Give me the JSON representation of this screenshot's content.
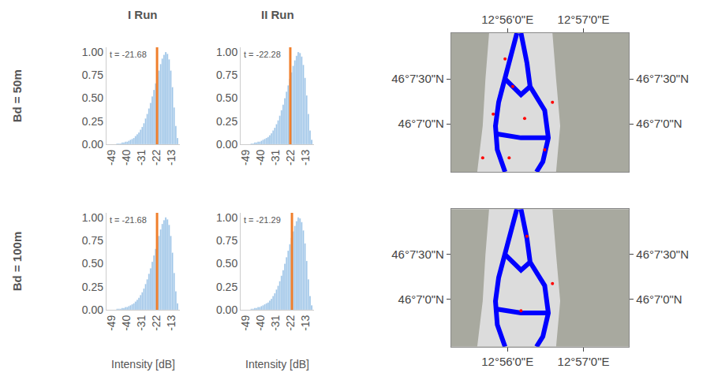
{
  "figure": {
    "column_titles": [
      "I Run",
      "II Run"
    ],
    "row_titles": [
      "Bd = 50m",
      "Bd = 100m"
    ]
  },
  "chart_data": [
    {
      "type": "histogram",
      "color": "#9ec5e8",
      "bins": [
        -49,
        -48,
        -47,
        -46,
        -45,
        -44,
        -43,
        -42,
        -41,
        -40,
        -39,
        -38,
        -37,
        -36,
        -35,
        -34,
        -33,
        -32,
        -31,
        -30,
        -29,
        -28,
        -27,
        -26,
        -25,
        -24,
        -23,
        -22,
        -21,
        -20,
        -19,
        -18,
        -17,
        -16,
        -15,
        -14,
        -13,
        -12,
        -11,
        -10,
        -9
      ],
      "counts": [
        0,
        0,
        0,
        0.01,
        0.01,
        0.01,
        0.02,
        0.02,
        0.03,
        0.03,
        0.04,
        0.05,
        0.06,
        0.07,
        0.09,
        0.11,
        0.13,
        0.16,
        0.19,
        0.23,
        0.28,
        0.33,
        0.39,
        0.45,
        0.52,
        0.59,
        0.66,
        0.73,
        0.8,
        0.87,
        0.93,
        0.97,
        1.0,
        0.98,
        0.92,
        0.8,
        0.62,
        0.4,
        0.2,
        0.07
      ],
      "threshold": {
        "value": -21.68,
        "label": "t = -21.68",
        "color": "#f07f2c"
      },
      "xlim": [
        -52,
        -8
      ],
      "xticks": [
        -49,
        -40,
        -31,
        -22,
        -13
      ],
      "ylim": [
        0,
        1.05
      ],
      "yticks": [
        {
          "value": 0,
          "label": "0.00"
        },
        {
          "value": 0.25,
          "label": "0.25"
        },
        {
          "value": 0.5,
          "label": "0.50"
        },
        {
          "value": 0.75,
          "label": "0.75"
        },
        {
          "value": 1,
          "label": "1.00"
        }
      ]
    },
    {
      "type": "histogram",
      "color": "#9ec5e8",
      "bins": [
        -49,
        -48,
        -47,
        -46,
        -45,
        -44,
        -43,
        -42,
        -41,
        -40,
        -39,
        -38,
        -37,
        -36,
        -35,
        -34,
        -33,
        -32,
        -31,
        -30,
        -29,
        -28,
        -27,
        -26,
        -25,
        -24,
        -23,
        -22,
        -21,
        -20,
        -19,
        -18,
        -17,
        -16,
        -15,
        -14,
        -13,
        -12,
        -11,
        -10,
        -9
      ],
      "counts": [
        0,
        0,
        0,
        0.01,
        0.01,
        0.02,
        0.02,
        0.03,
        0.03,
        0.04,
        0.05,
        0.06,
        0.07,
        0.08,
        0.1,
        0.12,
        0.15,
        0.18,
        0.22,
        0.26,
        0.31,
        0.37,
        0.43,
        0.5,
        0.57,
        0.64,
        0.71,
        0.78,
        0.85,
        0.91,
        0.96,
        1.0,
        0.99,
        0.95,
        0.86,
        0.72,
        0.53,
        0.33,
        0.15,
        0.05
      ],
      "threshold": {
        "value": -22.28,
        "label": "t = -22.28",
        "color": "#f07f2c"
      },
      "xlim": [
        -52,
        -8
      ],
      "xticks": [
        -49,
        -40,
        -31,
        -22,
        -13
      ],
      "ylim": [
        0,
        1.05
      ],
      "yticks": [
        {
          "value": 0,
          "label": "0.00"
        },
        {
          "value": 0.25,
          "label": "0.25"
        },
        {
          "value": 0.5,
          "label": "0.50"
        },
        {
          "value": 0.75,
          "label": "0.75"
        },
        {
          "value": 1,
          "label": "1.00"
        }
      ]
    },
    {
      "type": "histogram",
      "color": "#9ec5e8",
      "xlabel": "Intensity [dB]",
      "bins": [
        -49,
        -48,
        -47,
        -46,
        -45,
        -44,
        -43,
        -42,
        -41,
        -40,
        -39,
        -38,
        -37,
        -36,
        -35,
        -34,
        -33,
        -32,
        -31,
        -30,
        -29,
        -28,
        -27,
        -26,
        -25,
        -24,
        -23,
        -22,
        -21,
        -20,
        -19,
        -18,
        -17,
        -16,
        -15,
        -14,
        -13,
        -12,
        -11,
        -10,
        -9
      ],
      "counts": [
        0,
        0,
        0,
        0.01,
        0.01,
        0.01,
        0.02,
        0.02,
        0.03,
        0.03,
        0.04,
        0.05,
        0.06,
        0.07,
        0.09,
        0.11,
        0.13,
        0.16,
        0.19,
        0.23,
        0.28,
        0.33,
        0.39,
        0.45,
        0.52,
        0.59,
        0.66,
        0.73,
        0.8,
        0.87,
        0.93,
        0.97,
        1.0,
        0.98,
        0.92,
        0.8,
        0.62,
        0.4,
        0.2,
        0.07
      ],
      "threshold": {
        "value": -21.68,
        "label": "t = -21.68",
        "color": "#f07f2c"
      },
      "xlim": [
        -52,
        -8
      ],
      "xticks": [
        -49,
        -40,
        -31,
        -22,
        -13
      ],
      "ylim": [
        0,
        1.05
      ],
      "yticks": [
        {
          "value": 0,
          "label": "0.00"
        },
        {
          "value": 0.25,
          "label": "0.25"
        },
        {
          "value": 0.5,
          "label": "0.50"
        },
        {
          "value": 0.75,
          "label": "0.75"
        },
        {
          "value": 1,
          "label": "1.00"
        }
      ]
    },
    {
      "type": "histogram",
      "color": "#9ec5e8",
      "xlabel": "Intensity [dB]",
      "bins": [
        -49,
        -48,
        -47,
        -46,
        -45,
        -44,
        -43,
        -42,
        -41,
        -40,
        -39,
        -38,
        -37,
        -36,
        -35,
        -34,
        -33,
        -32,
        -31,
        -30,
        -29,
        -28,
        -27,
        -26,
        -25,
        -24,
        -23,
        -22,
        -21,
        -20,
        -19,
        -18,
        -17,
        -16,
        -15,
        -14,
        -13,
        -12,
        -11,
        -10,
        -9
      ],
      "counts": [
        0,
        0,
        0,
        0.01,
        0.01,
        0.02,
        0.02,
        0.03,
        0.03,
        0.04,
        0.05,
        0.06,
        0.07,
        0.08,
        0.1,
        0.12,
        0.15,
        0.18,
        0.22,
        0.26,
        0.31,
        0.37,
        0.43,
        0.5,
        0.57,
        0.64,
        0.71,
        0.78,
        0.85,
        0.91,
        0.96,
        1.0,
        0.99,
        0.95,
        0.86,
        0.72,
        0.53,
        0.33,
        0.15,
        0.05
      ],
      "threshold": {
        "value": -21.29,
        "label": "t = -21.29",
        "color": "#f07f2c"
      },
      "xlim": [
        -52,
        -8
      ],
      "xticks": [
        -49,
        -40,
        -31,
        -22,
        -13
      ],
      "ylim": [
        0,
        1.05
      ],
      "yticks": [
        {
          "value": 0,
          "label": "0.00"
        },
        {
          "value": 0.25,
          "label": "0.25"
        },
        {
          "value": 0.5,
          "label": "0.50"
        },
        {
          "value": 0.75,
          "label": "0.75"
        },
        {
          "value": 1,
          "label": "1.00"
        }
      ]
    },
    {
      "type": "map",
      "xlim": [
        12.921,
        12.96
      ],
      "ylim": [
        46.1078,
        46.1335
      ],
      "xticks": [
        {
          "value": 12.93333,
          "label": "12°56'0\"E"
        },
        {
          "value": 12.95,
          "label": "12°57'0\"E"
        }
      ],
      "yticks": [
        {
          "value": 46.11667,
          "label": "46°7'0\"N"
        },
        {
          "value": 46.125,
          "label": "46°7'30\"N"
        }
      ],
      "series": [
        {
          "type": "area",
          "color": "#dcdcdc",
          "x": [
            12.9293,
            12.9432,
            12.944,
            12.9449,
            12.944,
            12.9267,
            12.9279,
            12.9285
          ],
          "y": [
            46.1335,
            46.1335,
            46.125,
            46.1163,
            46.1078,
            46.1078,
            46.1163,
            46.125
          ]
        },
        {
          "type": "line",
          "color": "#0000ff",
          "x": [
            12.9354,
            12.9342,
            12.9328,
            12.9314,
            12.9307,
            12.9311,
            12.9328
          ],
          "y": [
            46.1335,
            46.1294,
            46.125,
            46.1207,
            46.1163,
            46.1119,
            46.1078
          ]
        },
        {
          "type": "line",
          "color": "#0000ff",
          "x": [
            12.9363,
            12.9376,
            12.9383,
            12.9415,
            12.9423,
            12.9411,
            12.9397
          ],
          "y": [
            46.1335,
            46.128,
            46.1236,
            46.1192,
            46.1141,
            46.1097,
            46.1078
          ]
        },
        {
          "type": "line",
          "color": "#0000ff",
          "x": [
            12.9328,
            12.9363,
            12.9383
          ],
          "y": [
            46.125,
            46.1221,
            46.1236
          ]
        },
        {
          "type": "line",
          "color": "#0000ff",
          "x": [
            12.9311,
            12.9363,
            12.9423
          ],
          "y": [
            46.1148,
            46.1141,
            46.1141
          ]
        },
        {
          "type": "scatter",
          "color": "#ff0000",
          "x": [
            12.9345,
            12.9328,
            12.9371,
            12.9302,
            12.9415,
            12.9432,
            12.9279,
            12.9337
          ],
          "y": [
            46.1236,
            46.1287,
            46.1177,
            46.1185,
            46.1119,
            46.1207,
            46.1104,
            46.1104
          ]
        }
      ]
    },
    {
      "type": "map",
      "xlim": [
        12.921,
        12.96
      ],
      "ylim": [
        46.1078,
        46.1335
      ],
      "xticks": [
        {
          "value": 12.93333,
          "label": "12°56'0\"E"
        },
        {
          "value": 12.95,
          "label": "12°57'0\"E"
        }
      ],
      "yticks": [
        {
          "value": 46.11667,
          "label": "46°7'0\"N"
        },
        {
          "value": 46.125,
          "label": "46°7'30\"N"
        }
      ],
      "series": [
        {
          "type": "area",
          "color": "#dcdcdc",
          "x": [
            12.9293,
            12.9432,
            12.944,
            12.9449,
            12.944,
            12.9267,
            12.9279,
            12.9285
          ],
          "y": [
            46.1335,
            46.1335,
            46.125,
            46.1163,
            46.1078,
            46.1078,
            46.1163,
            46.125
          ]
        },
        {
          "type": "line",
          "color": "#0000ff",
          "x": [
            12.9354,
            12.9342,
            12.9328,
            12.9314,
            12.9307,
            12.9311,
            12.9328
          ],
          "y": [
            46.1335,
            46.1294,
            46.125,
            46.1207,
            46.1163,
            46.1119,
            46.1078
          ]
        },
        {
          "type": "line",
          "color": "#0000ff",
          "x": [
            12.9363,
            12.9376,
            12.9383,
            12.9415,
            12.9423,
            12.9411,
            12.9397
          ],
          "y": [
            46.1335,
            46.128,
            46.1236,
            46.1192,
            46.1141,
            46.1097,
            46.1078
          ]
        },
        {
          "type": "line",
          "color": "#0000ff",
          "x": [
            12.9328,
            12.9363,
            12.9383
          ],
          "y": [
            46.125,
            46.1221,
            46.1236
          ]
        },
        {
          "type": "line",
          "color": "#0000ff",
          "x": [
            12.9311,
            12.9363,
            12.9423
          ],
          "y": [
            46.1148,
            46.1141,
            46.1141
          ]
        },
        {
          "type": "scatter",
          "color": "#ff0000",
          "x": [
            12.9376,
            12.9363,
            12.9432
          ],
          "y": [
            46.1284,
            46.1145,
            46.1196
          ]
        }
      ]
    }
  ]
}
